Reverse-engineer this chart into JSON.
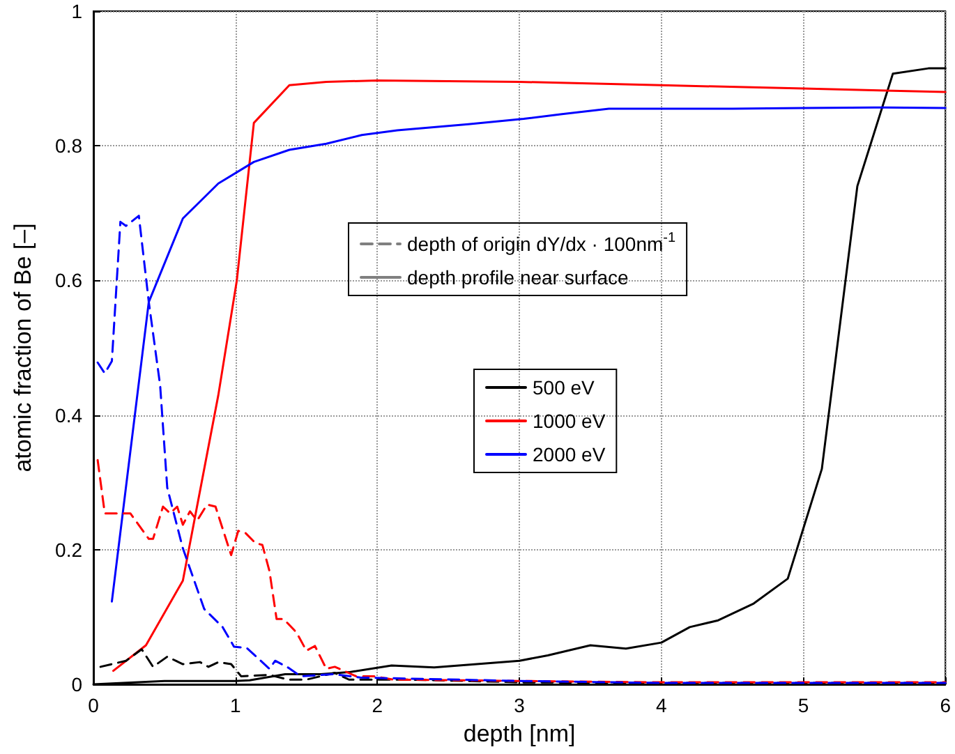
{
  "chart_data": {
    "type": "line",
    "xlabel": "depth [nm]",
    "ylabel": "atomic fraction of Be [–]",
    "xlim": [
      0,
      6
    ],
    "xticks": [
      0,
      1,
      2,
      3,
      4,
      5,
      6
    ],
    "ylim": [
      0,
      1
    ],
    "yticks": [
      0,
      0.2,
      0.4,
      0.6,
      0.8,
      1
    ],
    "grid": true,
    "legend": "center",
    "marker": "none",
    "series": [
      {
        "name": "depth of origin dY/dx · 100nm$^{-1}$",
        "color": "#808080",
        "line_style": "dashed"
      },
      {
        "name": "depth profile near surface",
        "color": "#808080",
        "line_style": "solid"
      },
      {
        "name": "500 eV",
        "color": "#000000",
        "line_style": "solid",
        "x": [
          0,
          0.5,
          1.0,
          1.1,
          1.35,
          1.6,
          1.8,
          2.1,
          2.4,
          2.7,
          3.0,
          3.2,
          3.5,
          3.75,
          4.0,
          4.2,
          4.4,
          4.65,
          4.89,
          5.13,
          5.38,
          5.63,
          5.88,
          6.0
        ],
        "values": [
          0,
          0.005,
          0.005,
          0.006,
          0.015,
          0.015,
          0.018,
          0.028,
          0.025,
          0.03,
          0.035,
          0.043,
          0.058,
          0.053,
          0.062,
          0.085,
          0.095,
          0.12,
          0.157,
          0.32,
          0.74,
          0.907,
          0.915,
          0.915
        ]
      },
      {
        "name": "1000 eV",
        "color": "#ff0000",
        "line_style": "solid",
        "x": [
          0.14,
          0.37,
          0.63,
          0.88,
          1.01,
          1.13,
          1.38,
          1.64,
          2.0,
          3.0,
          4.0,
          5.0,
          6.0
        ],
        "values": [
          0.02,
          0.058,
          0.154,
          0.43,
          0.6,
          0.834,
          0.89,
          0.895,
          0.897,
          0.895,
          0.89,
          0.885,
          0.88
        ]
      },
      {
        "name": "2000 eV",
        "color": "#0000ff",
        "line_style": "solid",
        "x": [
          0.13,
          0.39,
          0.63,
          0.88,
          1.13,
          1.38,
          1.64,
          1.89,
          2.14,
          2.64,
          3.03,
          3.3,
          3.63,
          4.0,
          4.5,
          5.0,
          5.5,
          6.0
        ],
        "values": [
          0.123,
          0.568,
          0.692,
          0.744,
          0.776,
          0.794,
          0.803,
          0.816,
          0.823,
          0.832,
          0.84,
          0.847,
          0.855,
          0.855,
          0.855,
          0.856,
          0.857,
          0.856
        ]
      },
      {
        "color": "#000000",
        "line_style": "dashed",
        "x": [
          0.05,
          0.13,
          0.23,
          0.34,
          0.42,
          0.52,
          0.63,
          0.75,
          0.81,
          0.88,
          0.97,
          1.04,
          1.24,
          1.37,
          1.5,
          1.7,
          1.8,
          2.22,
          3.0,
          4.0,
          5.0,
          6.0
        ],
        "values": [
          0.026,
          0.03,
          0.035,
          0.052,
          0.026,
          0.041,
          0.03,
          0.033,
          0.026,
          0.033,
          0.03,
          0.012,
          0.014,
          0.007,
          0.007,
          0.017,
          0.007,
          0.007,
          0.003,
          0.002,
          0.002,
          0.002
        ]
      },
      {
        "color": "#ff0000",
        "line_style": "dashed",
        "x": [
          0.03,
          0.08,
          0.26,
          0.39,
          0.42,
          0.49,
          0.54,
          0.59,
          0.63,
          0.68,
          0.73,
          0.8,
          0.86,
          0.97,
          1.02,
          1.07,
          1.14,
          1.19,
          1.24,
          1.29,
          1.34,
          1.43,
          1.5,
          1.56,
          1.64,
          1.7,
          1.85,
          1.98,
          2.11,
          3.0,
          4.0,
          5.0,
          6.0
        ],
        "values": [
          0.333,
          0.254,
          0.254,
          0.216,
          0.216,
          0.264,
          0.254,
          0.264,
          0.237,
          0.257,
          0.243,
          0.267,
          0.264,
          0.192,
          0.228,
          0.225,
          0.21,
          0.207,
          0.168,
          0.097,
          0.097,
          0.077,
          0.05,
          0.057,
          0.023,
          0.026,
          0.012,
          0.012,
          0.007,
          0.005,
          0.003,
          0.003,
          0.003
        ]
      },
      {
        "color": "#0000ff",
        "line_style": "dashed",
        "x": [
          0.03,
          0.08,
          0.13,
          0.19,
          0.23,
          0.32,
          0.39,
          0.47,
          0.52,
          0.63,
          0.78,
          0.91,
          0.99,
          1.08,
          1.24,
          1.28,
          1.37,
          1.46,
          1.69,
          1.88,
          3.0,
          4.0,
          5.0,
          6.0
        ],
        "values": [
          0.478,
          0.462,
          0.48,
          0.687,
          0.681,
          0.696,
          0.568,
          0.444,
          0.292,
          0.202,
          0.112,
          0.085,
          0.056,
          0.054,
          0.023,
          0.035,
          0.025,
          0.012,
          0.015,
          0.01,
          0.005,
          0.002,
          0.002,
          0.002
        ]
      }
    ]
  }
}
